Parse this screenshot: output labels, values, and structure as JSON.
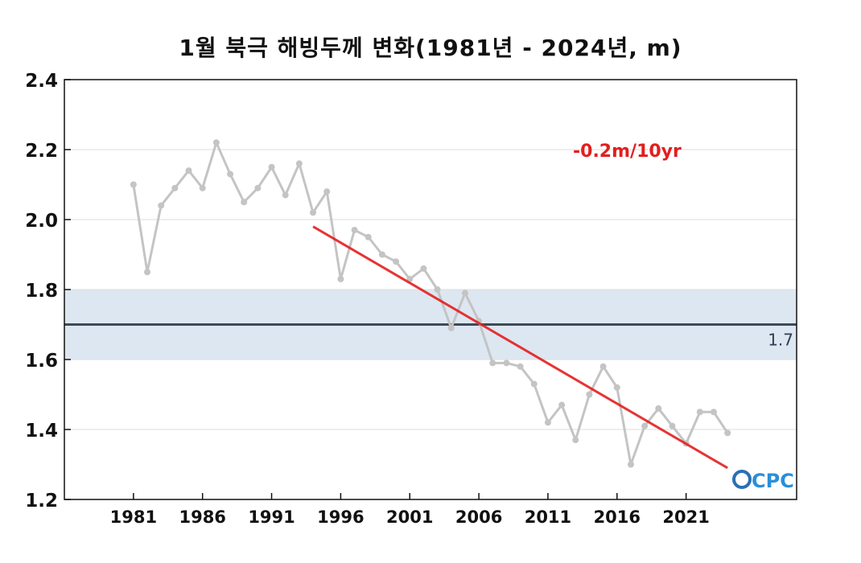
{
  "chart_data": {
    "type": "line",
    "title": "1월 북극 해빙두께 변화(1981년 - 2024년, m)",
    "xlabel": "",
    "ylabel": "",
    "xlim": [
      1976,
      2029
    ],
    "ylim": [
      1.2,
      2.4
    ],
    "x_ticks": [
      "1981",
      "1986",
      "1991",
      "1996",
      "2001",
      "2006",
      "2011",
      "2016",
      "2021"
    ],
    "y_ticks": [
      "1.2",
      "1.4",
      "1.6",
      "1.8",
      "2.0",
      "2.2",
      "2.4"
    ],
    "grid": true,
    "series": [
      {
        "x": [
          1981,
          1982,
          1983,
          1984,
          1985,
          1986,
          1987,
          1988,
          1989,
          1990,
          1991,
          1992,
          1993,
          1994,
          1995,
          1996,
          1997,
          1998,
          1999,
          2000,
          2001,
          2002,
          2003,
          2004,
          2005,
          2006,
          2007,
          2008,
          2009,
          2010,
          2011,
          2012,
          2013,
          2014,
          2015,
          2016,
          2017,
          2018,
          2019,
          2020,
          2021,
          2022,
          2023,
          2024
        ],
        "values": [
          2.1,
          1.85,
          2.04,
          2.09,
          2.14,
          2.09,
          2.22,
          2.13,
          2.05,
          2.09,
          2.15,
          2.07,
          2.16,
          2.02,
          2.08,
          1.83,
          1.97,
          1.95,
          1.9,
          1.88,
          1.83,
          1.86,
          1.8,
          1.69,
          1.79,
          1.71,
          1.59,
          1.59,
          1.58,
          1.53,
          1.42,
          1.47,
          1.37,
          1.5,
          1.58,
          1.52,
          1.3,
          1.41,
          1.46,
          1.41,
          1.36,
          1.45,
          1.45,
          1.39
        ],
        "color": "#c4c4c4"
      }
    ],
    "trend_line": {
      "x": [
        1994,
        2024
      ],
      "values": [
        1.98,
        1.29
      ],
      "color": "#e31e1e",
      "label": "-0.2m/10yr"
    },
    "reference_line": {
      "value": 1.7,
      "label": "1.7",
      "color": "#3d4a57"
    },
    "reference_band": {
      "range": [
        1.6,
        1.8
      ],
      "color": "#dde7f1"
    },
    "logo": "OCPC"
  }
}
